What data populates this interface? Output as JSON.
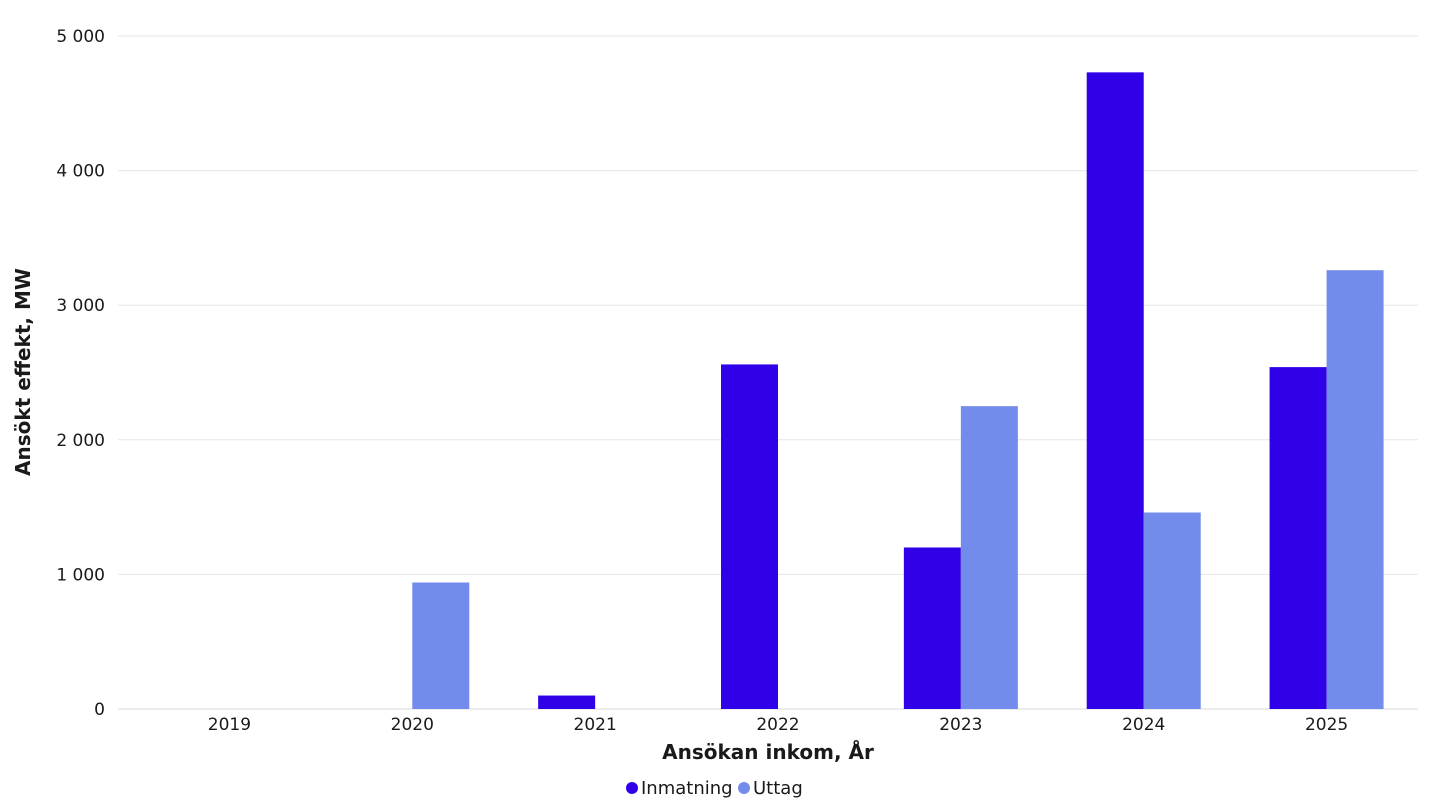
{
  "chart_data": {
    "type": "bar",
    "categories": [
      "2019",
      "2020",
      "2021",
      "2022",
      "2023",
      "2024",
      "2025"
    ],
    "series": [
      {
        "name": "Inmatning",
        "color": "#3000e8",
        "values": [
          0,
          0,
          100,
          2560,
          1200,
          4730,
          2540
        ]
      },
      {
        "name": "Uttag",
        "color": "#738ceb",
        "values": [
          0,
          940,
          0,
          0,
          2250,
          1460,
          3260
        ]
      }
    ],
    "xlabel": "Ansökan inkom, År",
    "ylabel": "Ansökt effekt, MW",
    "ylim": [
      0,
      5000
    ],
    "yticks": [
      0,
      1000,
      2000,
      3000,
      4000,
      5000
    ],
    "ytick_labels": [
      "0",
      "1 000",
      "2 000",
      "3 000",
      "4 000",
      "5 000"
    ],
    "grid": true,
    "legend_position": "bottom-center"
  }
}
